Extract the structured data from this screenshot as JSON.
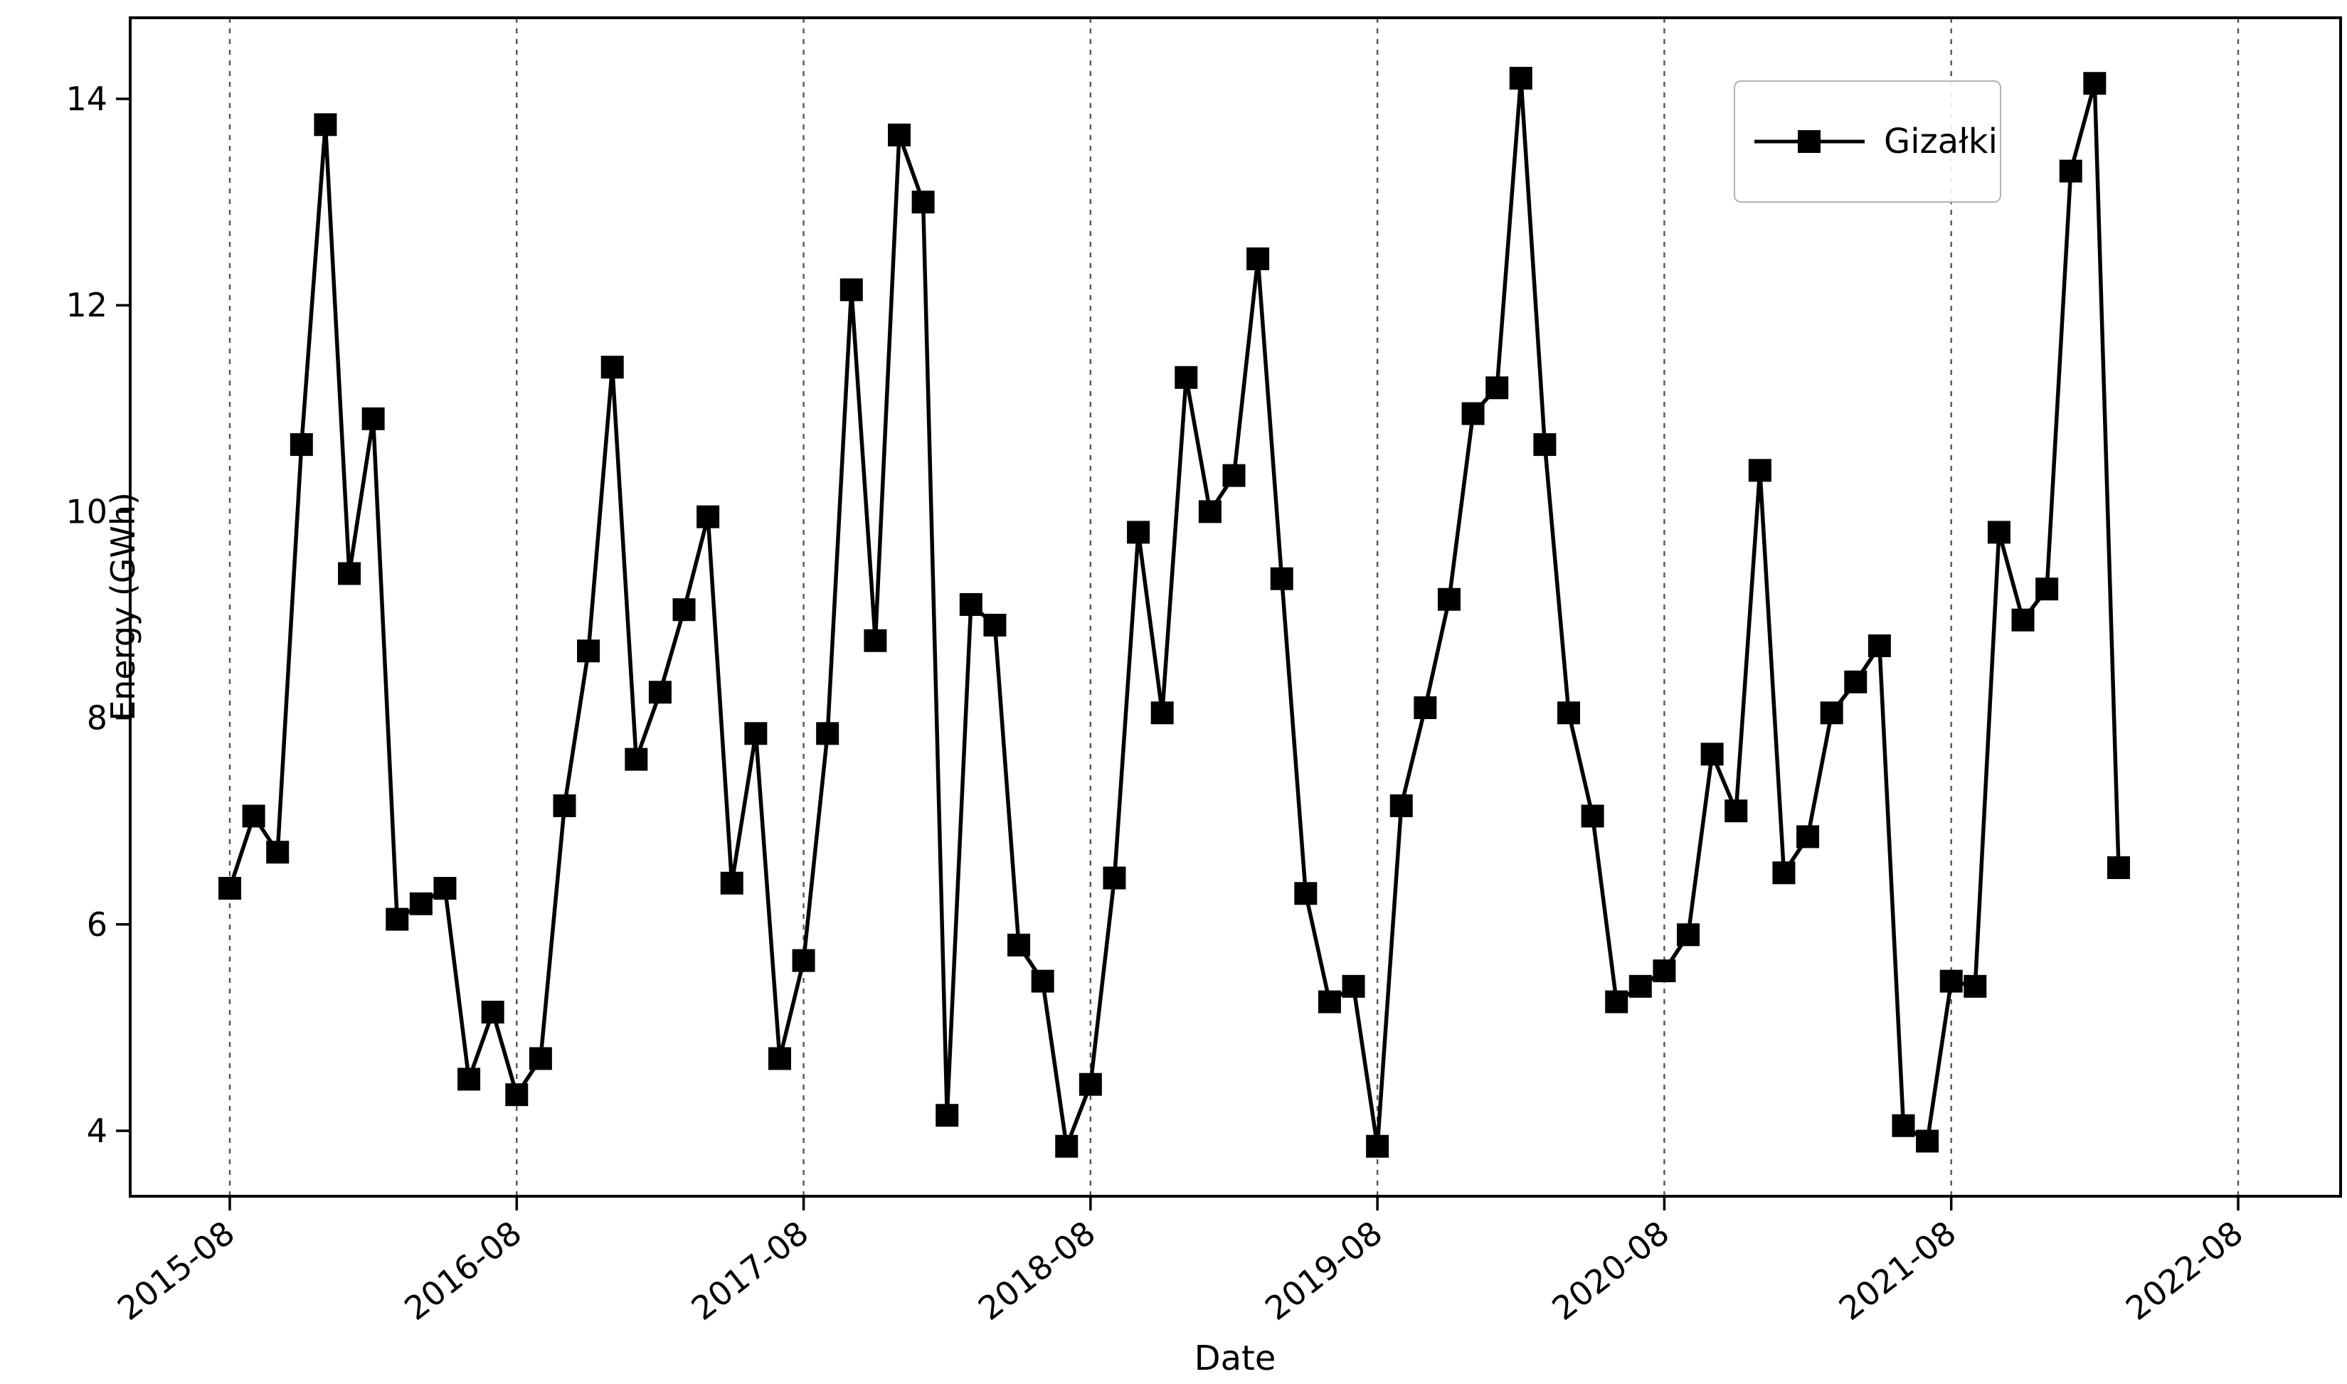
{
  "figure": {
    "xlabel": "Date",
    "ylabel": "Energy (GWh)",
    "legend_label": "Gizałki"
  },
  "axis": {
    "y_ticks": [
      4,
      6,
      8,
      10,
      12,
      14
    ],
    "x_ticks": [
      "2015-08",
      "2016-08",
      "2017-08",
      "2018-08",
      "2019-08",
      "2020-08",
      "2021-08",
      "2022-08"
    ]
  },
  "colors": {
    "line": "#000000",
    "marker": "#000000",
    "grid": "#555555",
    "spine": "#000000",
    "legend_border": "#b3b3b3",
    "background": "#ffffff"
  },
  "chart_data": {
    "type": "line",
    "series": [
      {
        "name": "Gizałki",
        "marker": "square",
        "color": "#000000",
        "values": [
          6.35,
          7.05,
          6.7,
          10.65,
          13.75,
          9.4,
          10.9,
          6.05,
          6.2,
          6.35,
          4.5,
          5.15,
          4.35,
          4.7,
          7.15,
          8.65,
          11.4,
          7.6,
          8.25,
          9.05,
          9.95,
          6.4,
          7.85,
          4.7,
          5.65,
          7.85,
          12.15,
          8.75,
          13.65,
          13.0,
          4.15,
          9.1,
          8.9,
          5.8,
          5.45,
          3.85,
          4.45,
          6.45,
          9.8,
          8.05,
          11.3,
          10.0,
          10.35,
          12.45,
          9.35,
          6.3,
          5.25,
          5.4,
          3.85,
          7.15,
          8.1,
          9.15,
          10.95,
          11.2,
          14.2,
          10.65,
          8.05,
          7.05,
          5.25,
          5.4,
          5.55,
          5.9,
          7.65,
          7.1,
          10.4,
          6.5,
          6.85,
          8.05,
          8.35,
          8.7,
          4.05,
          3.9,
          5.45,
          5.4,
          9.8,
          8.95,
          9.25,
          13.3,
          14.15,
          6.55
        ]
      }
    ],
    "x": [
      "2015-08",
      "2015-09",
      "2015-10",
      "2015-11",
      "2015-12",
      "2016-01",
      "2016-02",
      "2016-03",
      "2016-04",
      "2016-05",
      "2016-06",
      "2016-07",
      "2016-08",
      "2016-09",
      "2016-10",
      "2016-11",
      "2016-12",
      "2017-01",
      "2017-02",
      "2017-03",
      "2017-04",
      "2017-05",
      "2017-06",
      "2017-07",
      "2017-08",
      "2017-09",
      "2017-10",
      "2017-11",
      "2017-12",
      "2018-01",
      "2018-02",
      "2018-03",
      "2018-04",
      "2018-05",
      "2018-06",
      "2018-07",
      "2018-08",
      "2018-09",
      "2018-10",
      "2018-11",
      "2018-12",
      "2019-01",
      "2019-02",
      "2019-03",
      "2019-04",
      "2019-05",
      "2019-06",
      "2019-07",
      "2019-08",
      "2019-09",
      "2019-10",
      "2019-11",
      "2019-12",
      "2020-01",
      "2020-02",
      "2020-03",
      "2020-04",
      "2020-05",
      "2020-06",
      "2020-07",
      "2020-08",
      "2020-09",
      "2020-10",
      "2020-11",
      "2020-12",
      "2021-01",
      "2021-02",
      "2021-03",
      "2021-04",
      "2021-05",
      "2021-06",
      "2021-07",
      "2021-08",
      "2021-09",
      "2021-10",
      "2021-11",
      "2021-12",
      "2022-01",
      "2022-02",
      "2022-03"
    ],
    "title": "",
    "xlabel": "Date",
    "ylabel": "Energy (GWh)",
    "ylim": [
      3.4,
      14.8
    ],
    "grid": "vertical dashed lines at every August tick",
    "legend_position": "upper right"
  }
}
